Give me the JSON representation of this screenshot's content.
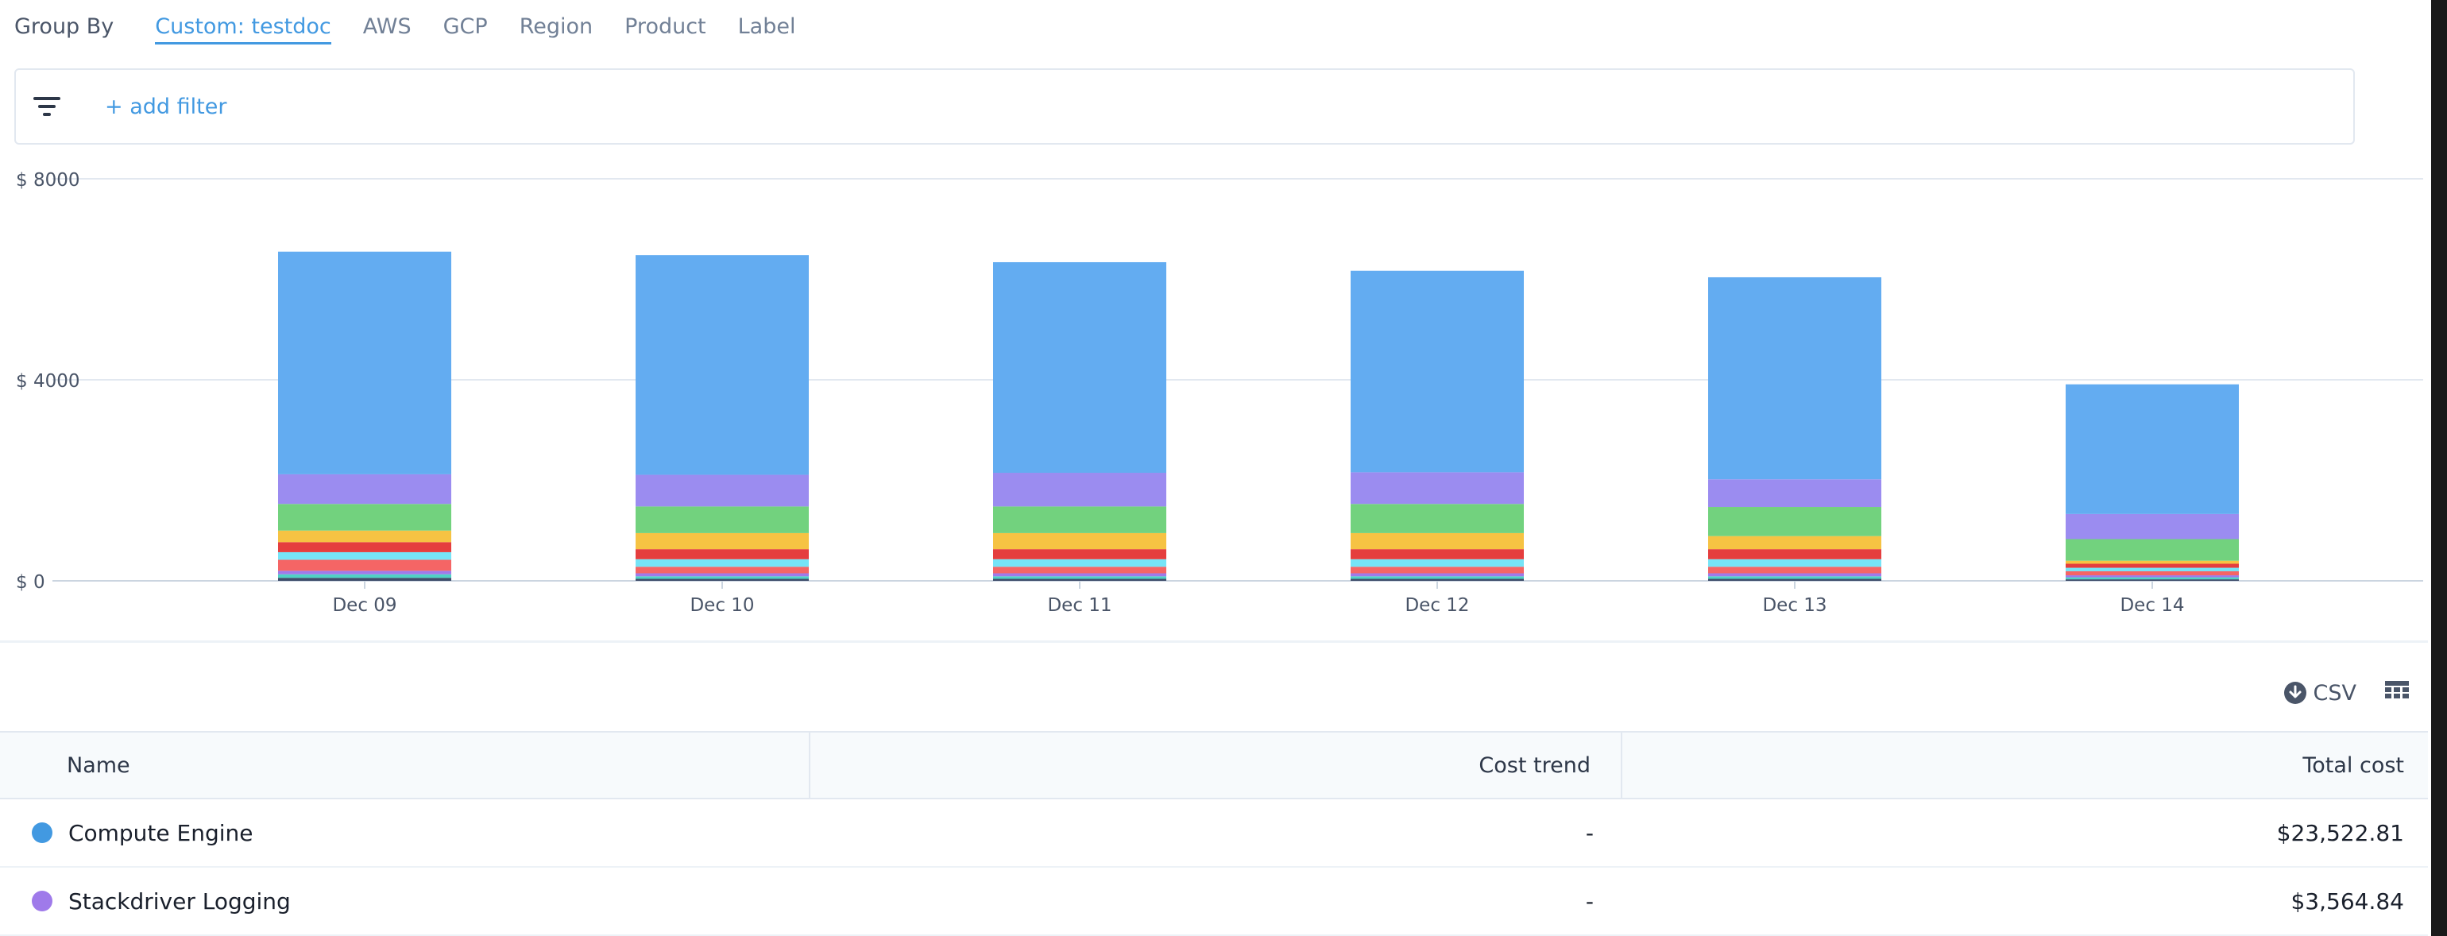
{
  "group_by": {
    "label": "Group By",
    "tabs": [
      {
        "label": "Custom: testdoc",
        "active": true
      },
      {
        "label": "AWS",
        "active": false
      },
      {
        "label": "GCP",
        "active": false
      },
      {
        "label": "Region",
        "active": false
      },
      {
        "label": "Product",
        "active": false
      },
      {
        "label": "Label",
        "active": false
      }
    ]
  },
  "filter": {
    "add_label": "+ add filter"
  },
  "chart_data": {
    "type": "bar",
    "stacked": true,
    "categories": [
      "Dec 09",
      "Dec 10",
      "Dec 11",
      "Dec 12",
      "Dec 13",
      "Dec 14"
    ],
    "ylim": [
      0,
      8000
    ],
    "yticks": [
      {
        "value": 0,
        "label": "$ 0"
      },
      {
        "value": 4000,
        "label": "$ 4000"
      },
      {
        "value": 8000,
        "label": "$ 8000"
      }
    ],
    "grid": true,
    "series": [
      {
        "color": "#3f4d6b",
        "values": [
          60,
          40,
          40,
          40,
          40,
          30
        ]
      },
      {
        "color": "#4fd1c5",
        "values": [
          70,
          50,
          50,
          50,
          50,
          40
        ]
      },
      {
        "color": "#9f7aea",
        "values": [
          70,
          60,
          60,
          60,
          60,
          40
        ]
      },
      {
        "color": "#f56565",
        "values": [
          220,
          130,
          130,
          130,
          130,
          80
        ]
      },
      {
        "color": "#76e4f7",
        "values": [
          150,
          150,
          150,
          150,
          150,
          70
        ]
      },
      {
        "color": "#e53e3e",
        "values": [
          200,
          200,
          200,
          200,
          200,
          80
        ]
      },
      {
        "color": "#f6c343",
        "values": [
          230,
          320,
          320,
          320,
          260,
          60
        ]
      },
      {
        "color": "#72d27e",
        "values": [
          530,
          530,
          530,
          580,
          580,
          430
        ]
      },
      {
        "color": "#9b8cf0",
        "values": [
          590,
          630,
          670,
          630,
          550,
          500
        ]
      },
      {
        "color": "#63acf1",
        "values": [
          4430,
          4370,
          4190,
          4010,
          4020,
          2580
        ]
      }
    ]
  },
  "toolbar": {
    "csv_label": "CSV"
  },
  "table": {
    "headers": {
      "name": "Name",
      "trend": "Cost trend",
      "total": "Total cost"
    },
    "rows": [
      {
        "name": "Compute Engine",
        "trend": "-",
        "total": "$23,522.81",
        "color": "#4299e1"
      },
      {
        "name": "Stackdriver Logging",
        "trend": "-",
        "total": "$3,564.84",
        "color": "#9f7aea"
      }
    ]
  }
}
